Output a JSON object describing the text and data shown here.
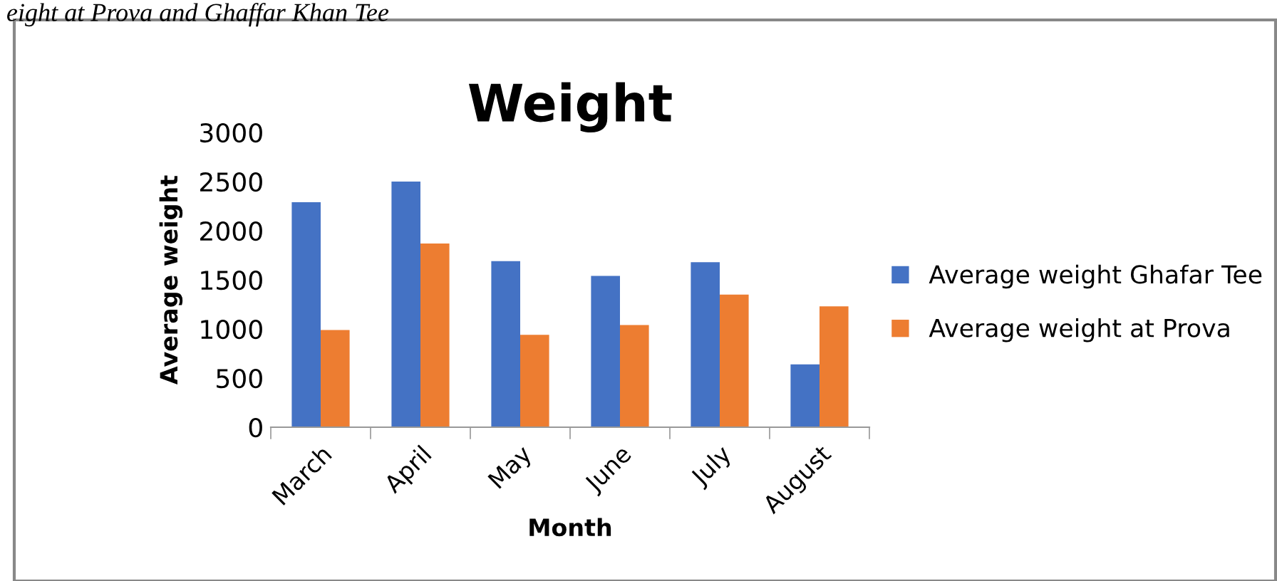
{
  "chart_data": {
    "type": "bar",
    "title": "Weight",
    "xlabel": "Month",
    "ylabel": "Average weight",
    "annotations": [
      "eight at Prova and Ghaffar Khan Tee"
    ],
    "categories": [
      "March",
      "April",
      "May",
      "June",
      "July",
      "August"
    ],
    "series": [
      {
        "name": "Average weight Ghafar Tee",
        "color": "#4472c4",
        "values": [
          2290,
          2500,
          1690,
          1540,
          1680,
          640
        ]
      },
      {
        "name": "Average weight at Prova",
        "color": "#ed7d31",
        "values": [
          990,
          1870,
          940,
          1040,
          1350,
          1230
        ]
      }
    ],
    "ylim": [
      0,
      3000
    ],
    "yticks": [
      0,
      500,
      1000,
      1500,
      2000,
      2500,
      3000
    ],
    "grid": false,
    "legend": "right"
  }
}
